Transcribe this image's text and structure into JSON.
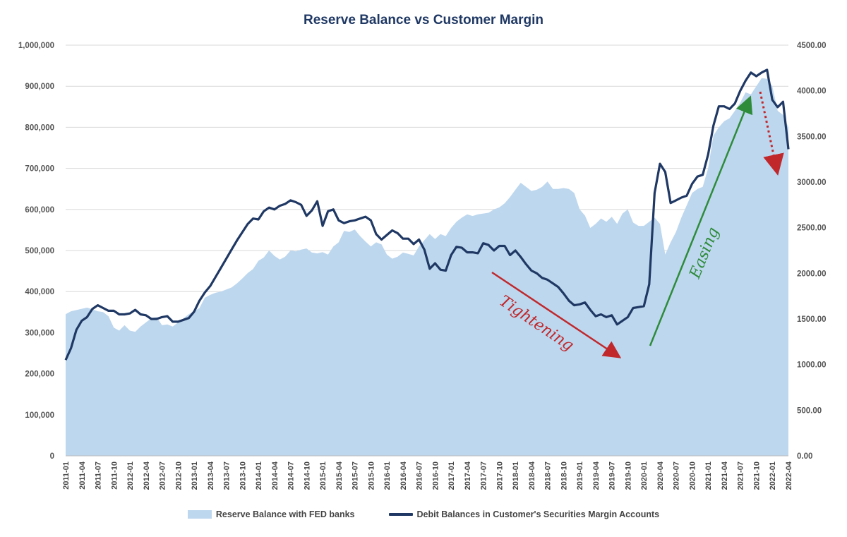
{
  "chart_data": {
    "type": "area+line",
    "title": "Reserve Balance vs Customer Margin",
    "x": [
      "2011-01",
      "2011-02",
      "2011-03",
      "2011-04",
      "2011-05",
      "2011-06",
      "2011-07",
      "2011-08",
      "2011-09",
      "2011-10",
      "2011-11",
      "2011-12",
      "2012-01",
      "2012-02",
      "2012-03",
      "2012-04",
      "2012-05",
      "2012-06",
      "2012-07",
      "2012-08",
      "2012-09",
      "2012-10",
      "2012-11",
      "2012-12",
      "2013-01",
      "2013-02",
      "2013-03",
      "2013-04",
      "2013-05",
      "2013-06",
      "2013-07",
      "2013-08",
      "2013-09",
      "2013-10",
      "2013-11",
      "2013-12",
      "2014-01",
      "2014-02",
      "2014-03",
      "2014-04",
      "2014-05",
      "2014-06",
      "2014-07",
      "2014-08",
      "2014-09",
      "2014-10",
      "2014-11",
      "2014-12",
      "2015-01",
      "2015-02",
      "2015-03",
      "2015-04",
      "2015-05",
      "2015-06",
      "2015-07",
      "2015-08",
      "2015-09",
      "2015-10",
      "2015-11",
      "2015-12",
      "2016-01",
      "2016-02",
      "2016-03",
      "2016-04",
      "2016-05",
      "2016-06",
      "2016-07",
      "2016-08",
      "2016-09",
      "2016-10",
      "2016-11",
      "2016-12",
      "2017-01",
      "2017-02",
      "2017-03",
      "2017-04",
      "2017-05",
      "2017-06",
      "2017-07",
      "2017-08",
      "2017-09",
      "2017-10",
      "2017-11",
      "2017-12",
      "2018-01",
      "2018-02",
      "2018-03",
      "2018-04",
      "2018-05",
      "2018-06",
      "2018-07",
      "2018-08",
      "2018-09",
      "2018-10",
      "2018-11",
      "2018-12",
      "2019-01",
      "2019-02",
      "2019-03",
      "2019-04",
      "2019-05",
      "2019-06",
      "2019-07",
      "2019-08",
      "2019-09",
      "2019-10",
      "2019-11",
      "2019-12",
      "2020-01",
      "2020-02",
      "2020-03",
      "2020-04",
      "2020-05",
      "2020-06",
      "2020-07",
      "2020-08",
      "2020-09",
      "2020-10",
      "2020-11",
      "2020-12",
      "2021-01",
      "2021-02",
      "2021-03",
      "2021-04",
      "2021-05",
      "2021-06",
      "2021-07",
      "2021-08",
      "2021-09",
      "2021-10",
      "2021-11",
      "2021-12",
      "2022-01",
      "2022-02",
      "2022-03",
      "2022-04"
    ],
    "x_tick_labels": [
      "2011-01",
      "2011-04",
      "2011-07",
      "2011-10",
      "2012-01",
      "2012-04",
      "2012-07",
      "2012-10",
      "2013-01",
      "2013-04",
      "2013-07",
      "2013-10",
      "2014-01",
      "2014-04",
      "2014-07",
      "2014-10",
      "2015-01",
      "2015-04",
      "2015-07",
      "2015-10",
      "2016-01",
      "2016-04",
      "2016-07",
      "2016-10",
      "2017-01",
      "2017-04",
      "2017-07",
      "2017-10",
      "2018-01",
      "2018-04",
      "2018-07",
      "2018-10",
      "2019-01",
      "2019-04",
      "2019-07",
      "2019-10",
      "2020-01",
      "2020-04",
      "2020-07",
      "2020-10",
      "2021-01",
      "2021-04",
      "2021-07",
      "2021-10",
      "2022-01",
      "2022-04"
    ],
    "y_left": {
      "ticks": [
        "0",
        "100,000",
        "200,000",
        "300,000",
        "400,000",
        "500,000",
        "600,000",
        "700,000",
        "800,000",
        "900,000",
        "1,000,000"
      ],
      "range": [
        0,
        1000000
      ]
    },
    "y_right": {
      "ticks": [
        "0.00",
        "500.00",
        "1000.00",
        "1500.00",
        "2000.00",
        "2500.00",
        "3000.00",
        "3500.00",
        "4000.00",
        "4500.00"
      ],
      "range": [
        0,
        4500
      ]
    },
    "grid": true,
    "legend_position": "bottom",
    "series": [
      {
        "name": "Reserve Balance with FED banks",
        "style": "area",
        "axis": "left",
        "color": "#bdd7ee",
        "values": [
          345000,
          352000,
          355000,
          358000,
          361000,
          357000,
          352000,
          350000,
          340000,
          312000,
          305000,
          318000,
          305000,
          302000,
          315000,
          325000,
          335000,
          338000,
          318000,
          320000,
          315000,
          325000,
          335000,
          345000,
          352000,
          360000,
          385000,
          392000,
          397000,
          400000,
          405000,
          410000,
          420000,
          432000,
          445000,
          455000,
          475000,
          483000,
          500000,
          487000,
          478000,
          485000,
          500000,
          498000,
          502000,
          505000,
          495000,
          493000,
          496000,
          490000,
          510000,
          520000,
          548000,
          545000,
          551000,
          535000,
          522000,
          510000,
          520000,
          515000,
          490000,
          480000,
          485000,
          495000,
          492000,
          488000,
          510000,
          525000,
          540000,
          528000,
          540000,
          535000,
          555000,
          570000,
          580000,
          588000,
          584000,
          588000,
          590000,
          592000,
          600000,
          605000,
          615000,
          630000,
          648000,
          665000,
          655000,
          645000,
          648000,
          655000,
          668000,
          650000,
          650000,
          652000,
          650000,
          640000,
          600000,
          585000,
          555000,
          565000,
          578000,
          570000,
          582000,
          565000,
          590000,
          600000,
          568000,
          560000,
          560000,
          570000,
          580000,
          565000,
          490000,
          520000,
          545000,
          580000,
          610000,
          640000,
          650000,
          655000,
          700000,
          780000,
          800000,
          815000,
          822000,
          840000,
          860000,
          885000,
          880000,
          900000,
          920000,
          918000,
          900000,
          840000,
          830000,
          800000
        ],
        "label_note": ""
      },
      {
        "name": "Debit Balances in Customer's Securities Margin Accounts",
        "style": "line",
        "axis": "right",
        "color": "#1f3864",
        "values": [
          1050,
          1180,
          1380,
          1480,
          1520,
          1610,
          1650,
          1620,
          1590,
          1590,
          1550,
          1550,
          1560,
          1600,
          1550,
          1540,
          1500,
          1500,
          1520,
          1530,
          1470,
          1470,
          1490,
          1510,
          1580,
          1700,
          1790,
          1860,
          1960,
          2060,
          2160,
          2260,
          2360,
          2450,
          2540,
          2600,
          2590,
          2680,
          2720,
          2700,
          2740,
          2760,
          2800,
          2780,
          2750,
          2630,
          2690,
          2790,
          2520,
          2680,
          2700,
          2580,
          2550,
          2570,
          2580,
          2600,
          2620,
          2580,
          2430,
          2370,
          2420,
          2470,
          2440,
          2380,
          2380,
          2320,
          2370,
          2260,
          2050,
          2110,
          2040,
          2030,
          2200,
          2290,
          2280,
          2230,
          2230,
          2220,
          2330,
          2310,
          2250,
          2300,
          2300,
          2200,
          2250,
          2180,
          2100,
          2030,
          2000,
          1950,
          1930,
          1890,
          1850,
          1780,
          1700,
          1650,
          1660,
          1680,
          1600,
          1530,
          1550,
          1520,
          1540,
          1440,
          1480,
          1520,
          1620,
          1630,
          1640,
          1880,
          2880,
          3200,
          3110,
          2770,
          2800,
          2830,
          2850,
          2980,
          3060,
          3080,
          3300,
          3620,
          3830,
          3830,
          3800,
          3860,
          4000,
          4110,
          4200,
          4160,
          4200,
          4230,
          3900,
          3820,
          3880,
          3360
        ],
        "label_note": ""
      }
    ],
    "annotations": [
      {
        "text": "Tightening",
        "color": "#c0282c"
      },
      {
        "text": "Easing",
        "color": "#2e8b3a"
      }
    ]
  }
}
